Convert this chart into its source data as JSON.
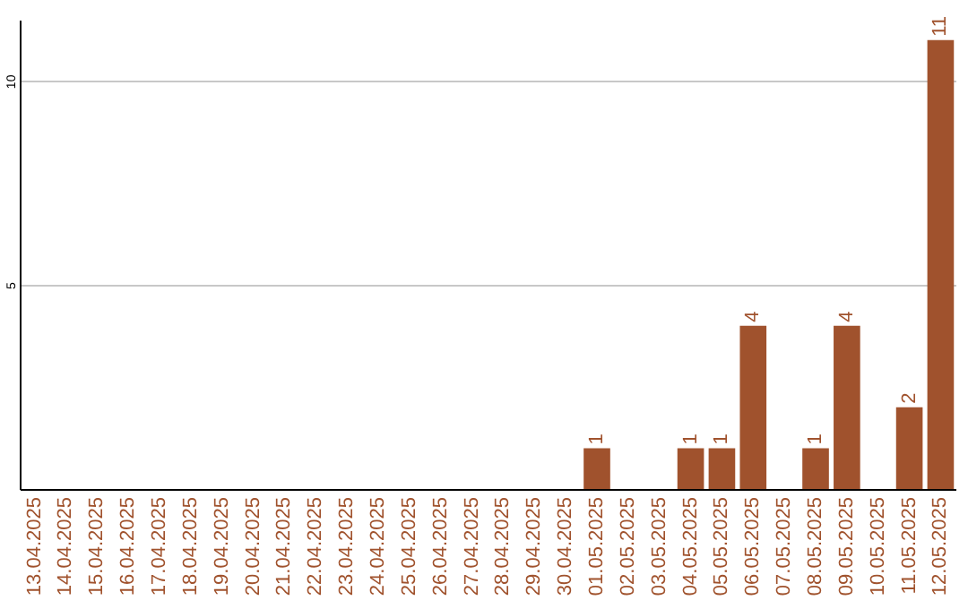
{
  "chart_data": {
    "type": "bar",
    "categories": [
      "13.04.2025",
      "14.04.2025",
      "15.04.2025",
      "16.04.2025",
      "17.04.2025",
      "18.04.2025",
      "19.04.2025",
      "20.04.2025",
      "21.04.2025",
      "22.04.2025",
      "23.04.2025",
      "24.04.2025",
      "25.04.2025",
      "26.04.2025",
      "27.04.2025",
      "28.04.2025",
      "29.04.2025",
      "30.04.2025",
      "01.05.2025",
      "02.05.2025",
      "03.05.2025",
      "04.05.2025",
      "05.05.2025",
      "06.05.2025",
      "07.05.2025",
      "08.05.2025",
      "09.05.2025",
      "10.05.2025",
      "11.05.2025",
      "12.05.2025"
    ],
    "values": [
      0,
      0,
      0,
      0,
      0,
      0,
      0,
      0,
      0,
      0,
      0,
      0,
      0,
      0,
      0,
      0,
      0,
      0,
      1,
      0,
      0,
      1,
      1,
      4,
      0,
      1,
      4,
      0,
      2,
      11
    ],
    "value_labels": [
      null,
      null,
      null,
      null,
      null,
      null,
      null,
      null,
      null,
      null,
      null,
      null,
      null,
      null,
      null,
      null,
      null,
      null,
      "1",
      null,
      null,
      "1",
      "1",
      "4",
      null,
      "1",
      "4",
      null,
      "2",
      "11"
    ],
    "color": "#a0522d",
    "ylim": [
      0,
      11.5
    ],
    "yticks": [
      5,
      10
    ],
    "grid": "y"
  }
}
